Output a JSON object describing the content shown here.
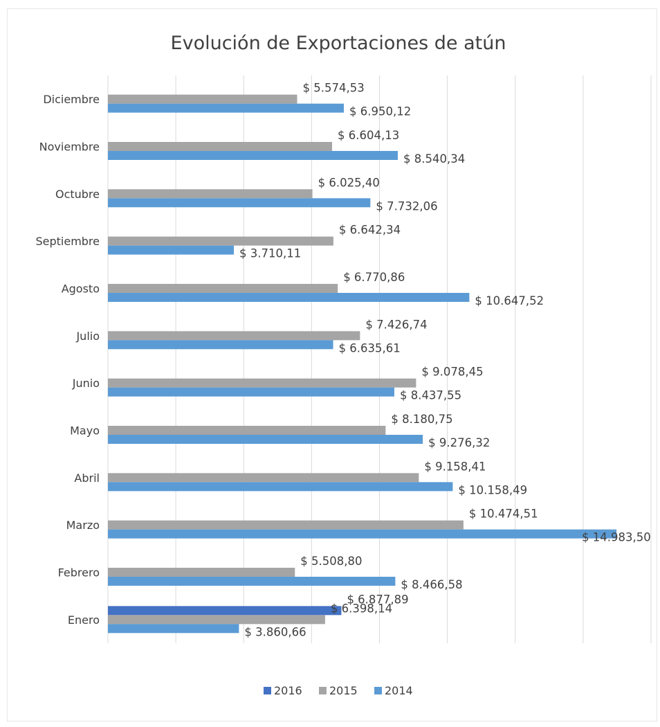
{
  "chart_data": {
    "type": "bar",
    "orientation": "horizontal",
    "title": "Evolución de Exportaciones de atún",
    "xlabel": "",
    "ylabel": "",
    "xlim": [
      0,
      16000
    ],
    "grid": true,
    "legend_position": "bottom",
    "categories": [
      "Enero",
      "Febrero",
      "Marzo",
      "Abril",
      "Mayo",
      "Junio",
      "Julio",
      "Agosto",
      "Septiembre",
      "Octubre",
      "Noviembre",
      "Diciembre"
    ],
    "series": [
      {
        "name": "2016",
        "color": "#4472c4",
        "values": [
          6877.89,
          null,
          null,
          null,
          null,
          null,
          null,
          null,
          null,
          null,
          null,
          null
        ],
        "labels": [
          "$ 6.877,89",
          "",
          "",
          "",
          "",
          "",
          "",
          "",
          "",
          "",
          "",
          ""
        ]
      },
      {
        "name": "2015",
        "color": "#a5a5a5",
        "values": [
          6398.14,
          5508.8,
          10474.51,
          9158.41,
          8180.75,
          9078.45,
          7426.74,
          6770.86,
          6642.34,
          6025.4,
          6604.13,
          5574.53
        ],
        "labels": [
          "$ 6.398,14",
          "$ 5.508,80",
          "$ 10.474,51",
          "$ 9.158,41",
          "$ 8.180,75",
          "$ 9.078,45",
          "$ 7.426,74",
          "$ 6.770,86",
          "$ 6.642,34",
          "$ 6.025,40",
          "$ 6.604,13",
          "$ 5.574,53"
        ]
      },
      {
        "name": "2014",
        "color": "#5b9bd5",
        "values": [
          3860.66,
          8466.58,
          14983.5,
          10158.49,
          9276.32,
          8437.55,
          6635.61,
          10647.52,
          3710.11,
          7732.06,
          8540.34,
          6950.12
        ],
        "labels": [
          "$ 3.860,66",
          "$ 8.466,58",
          "$ 14.983,50",
          "$ 10.158,49",
          "$ 9.276,32",
          "$ 8.437,55",
          "$ 6.635,61",
          "$ 10.647,52",
          "$ 3.710,11",
          "$ 7.732,06",
          "$ 8.540,34",
          "$ 6.950,12"
        ]
      }
    ]
  }
}
